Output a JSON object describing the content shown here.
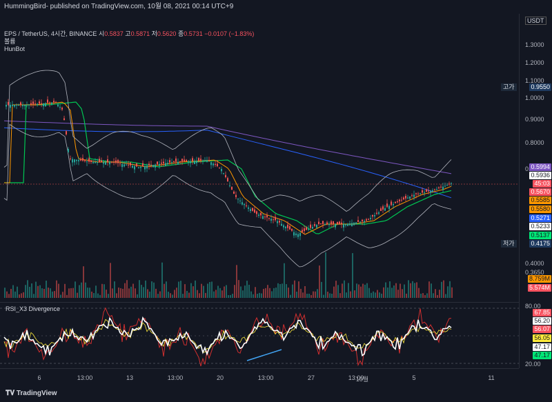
{
  "header": {
    "publish_line": "HummingBird- published on TradingView.com, 10월 08, 2021 00:14 UTC+9"
  },
  "legend": {
    "symbol": "EPS / TetherUS, 4시간, BINANCE",
    "ohlc": [
      {
        "label": "시",
        "value": "0.5837"
      },
      {
        "label": "고",
        "value": "0.5871"
      },
      {
        "label": "저",
        "value": "0.5620"
      },
      {
        "label": "종",
        "value": "0.5731"
      }
    ],
    "change": "−0.0107 (−1.83%)",
    "volume_label": "볼륨",
    "indicator": "HunBot"
  },
  "price_axis": {
    "currency": "USDT",
    "ticks": [
      "1.3000",
      "1.2000",
      "1.1000",
      "1.0000",
      "0.9000",
      "0.8000",
      "0.7000",
      "0.4000",
      "0.3650"
    ],
    "high_label": "고가",
    "high_value": "0.9550",
    "low_label": "저가",
    "low_value": "0.4175",
    "badges": [
      {
        "text": "0.5994",
        "color": "#7e57c2"
      },
      {
        "text": "0.5936",
        "color": "#ffffff"
      },
      {
        "text": "45:03",
        "color": "#f7525f"
      },
      {
        "text": "0.5670",
        "color": "#f7525f"
      },
      {
        "text": "0.5585",
        "color": "#ff9800"
      },
      {
        "text": "0.5580",
        "color": "#ff9800"
      },
      {
        "text": "0.5271",
        "color": "#2962ff"
      },
      {
        "text": "0.5233",
        "color": "#ffffff"
      },
      {
        "text": "0.5137",
        "color": "#00e676"
      }
    ],
    "volume_badges": [
      {
        "text": "8.759M",
        "color": "#ff9800"
      },
      {
        "text": "5.574M",
        "color": "#f7525f"
      }
    ]
  },
  "rsi": {
    "title": "RSI_X3 Divergence",
    "ticks": [
      "80.00",
      "20.00"
    ],
    "badges": [
      {
        "text": "67.85",
        "color": "#f7525f"
      },
      {
        "text": "56.20",
        "color": "#ffffff"
      },
      {
        "text": "56.07",
        "color": "#f7525f"
      },
      {
        "text": "56.05",
        "color": "#ffeb3b"
      },
      {
        "text": "47.17",
        "color": "#ffffff"
      },
      {
        "text": "47.17",
        "color": "#00e676"
      }
    ]
  },
  "time_axis": {
    "ticks": [
      "6",
      "13:00",
      "13",
      "13:00",
      "20",
      "13:00",
      "27",
      "13:00",
      "10월",
      "5",
      "11"
    ]
  },
  "footer": {
    "brand": "TradingView"
  }
}
